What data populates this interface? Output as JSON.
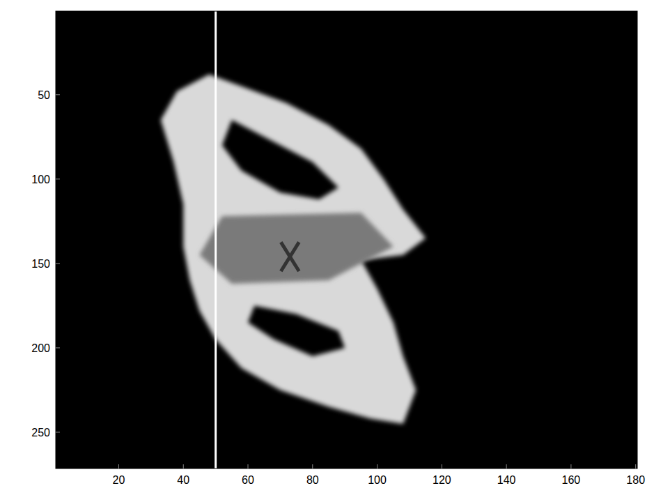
{
  "chart_data": {
    "type": "image",
    "xlim": [
      0.5,
      180.5
    ],
    "ylim": [
      0.5,
      271.5
    ],
    "xticks": [
      20,
      40,
      60,
      80,
      100,
      120,
      140,
      160,
      180
    ],
    "yticks": [
      50,
      100,
      150,
      200,
      250
    ],
    "grid": false,
    "color": "#d9d9d9",
    "bright_region": {
      "x": [
        48,
        58,
        72,
        85,
        95,
        102,
        108,
        115,
        108,
        95,
        100,
        105,
        108,
        112,
        108,
        98,
        85,
        70,
        58,
        50,
        45,
        42,
        40,
        40,
        37,
        33,
        38
      ],
      "y": [
        38,
        45,
        55,
        68,
        82,
        100,
        118,
        135,
        145,
        148,
        165,
        185,
        205,
        225,
        245,
        242,
        235,
        225,
        212,
        195,
        178,
        160,
        140,
        115,
        90,
        65,
        48
      ]
    },
    "dim_region": {
      "x": [
        52,
        95,
        105,
        85,
        55,
        45
      ],
      "y": [
        122,
        120,
        140,
        160,
        162,
        145
      ]
    },
    "holes": [
      {
        "x": [
          55,
          65,
          80,
          88,
          82,
          70,
          58,
          52
        ],
        "y": [
          65,
          75,
          90,
          105,
          112,
          108,
          95,
          80
        ]
      },
      {
        "x": [
          62,
          75,
          88,
          90,
          80,
          68,
          60
        ],
        "y": [
          175,
          180,
          190,
          200,
          205,
          195,
          185
        ]
      }
    ],
    "vline_x": 50,
    "point": {
      "x": 73,
      "y": 146,
      "marker": "x"
    }
  }
}
